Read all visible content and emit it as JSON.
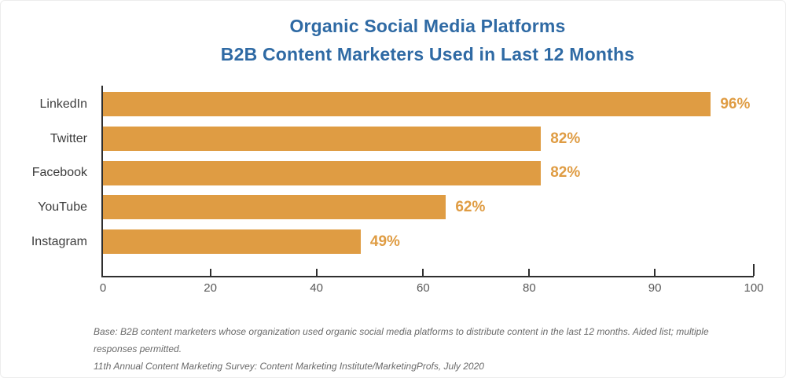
{
  "title": {
    "line1": "Organic Social Media Platforms",
    "line2": "B2B Content Marketers Used in Last 12 Months"
  },
  "chart_data": {
    "type": "bar",
    "orientation": "horizontal",
    "title": "Organic Social Media Platforms B2B Content Marketers Used in Last 12 Months",
    "categories": [
      "LinkedIn",
      "Twitter",
      "Facebook",
      "YouTube",
      "Instagram"
    ],
    "values": [
      96,
      82,
      82,
      62,
      49
    ],
    "value_labels": [
      "96%",
      "82%",
      "82%",
      "62%",
      "49%"
    ],
    "unit": "%",
    "xlabel": "",
    "ylabel": "",
    "xlim": [
      0,
      100
    ],
    "grid": false,
    "legend": "none",
    "bar_color": "#df9c43",
    "axis_tick_labels": [
      "0",
      "20",
      "40",
      "60",
      "80",
      "90",
      "100"
    ],
    "axis_tick_pos_pct": [
      0,
      16.5,
      32.8,
      49.2,
      65.5,
      84.8,
      100
    ],
    "bar_end_pos_pct": [
      93.4,
      67.3,
      67.3,
      52.7,
      39.6
    ]
  },
  "footer": {
    "base_note": "Base: B2B content marketers whose organization used organic social media platforms to distribute content in the last 12 months. Aided list; multiple responses permitted.",
    "source_note": "11th Annual Content Marketing Survey: Content Marketing Institute/MarketingProfs, July 2020"
  },
  "colors": {
    "title_blue": "#2f6aa4",
    "bar_orange": "#df9c43",
    "value_label_orange": "#df9c43",
    "axis_dark": "#2f2f2f",
    "category_label_gray": "#3c3c3c",
    "tick_label_gray": "#595959",
    "footer_gray": "#6a6a6a",
    "background": "#ffffff"
  }
}
